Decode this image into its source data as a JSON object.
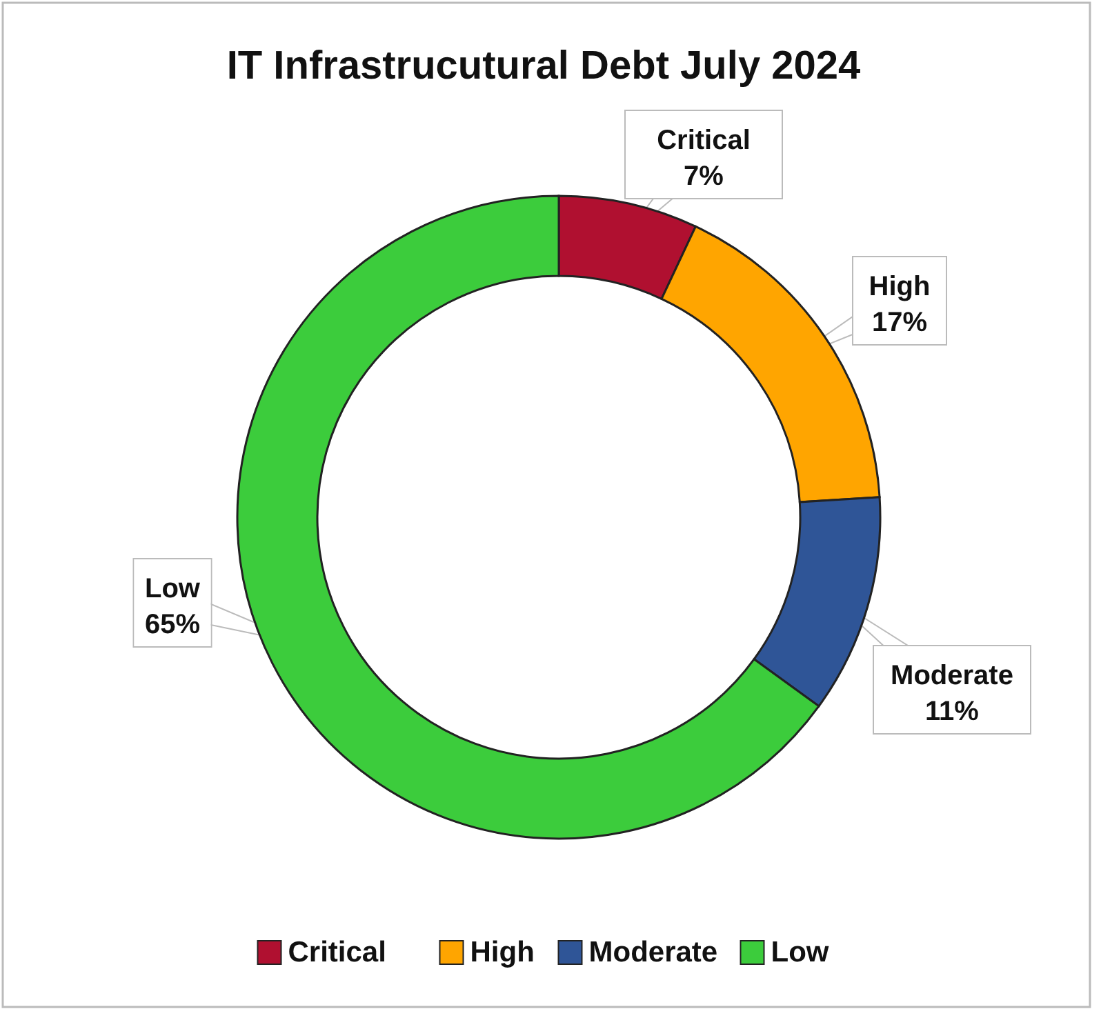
{
  "chart_data": {
    "type": "donut",
    "title": "IT Infrastrucutural Debt July 2024",
    "categories": [
      "Critical",
      "High",
      "Moderate",
      "Low"
    ],
    "values": [
      7,
      17,
      11,
      65
    ],
    "colors": [
      "#b01030",
      "#ffa500",
      "#2f5597",
      "#3ccc3c"
    ],
    "value_labels": [
      "7%",
      "17%",
      "11%",
      "65%"
    ],
    "legend": "bottom"
  }
}
